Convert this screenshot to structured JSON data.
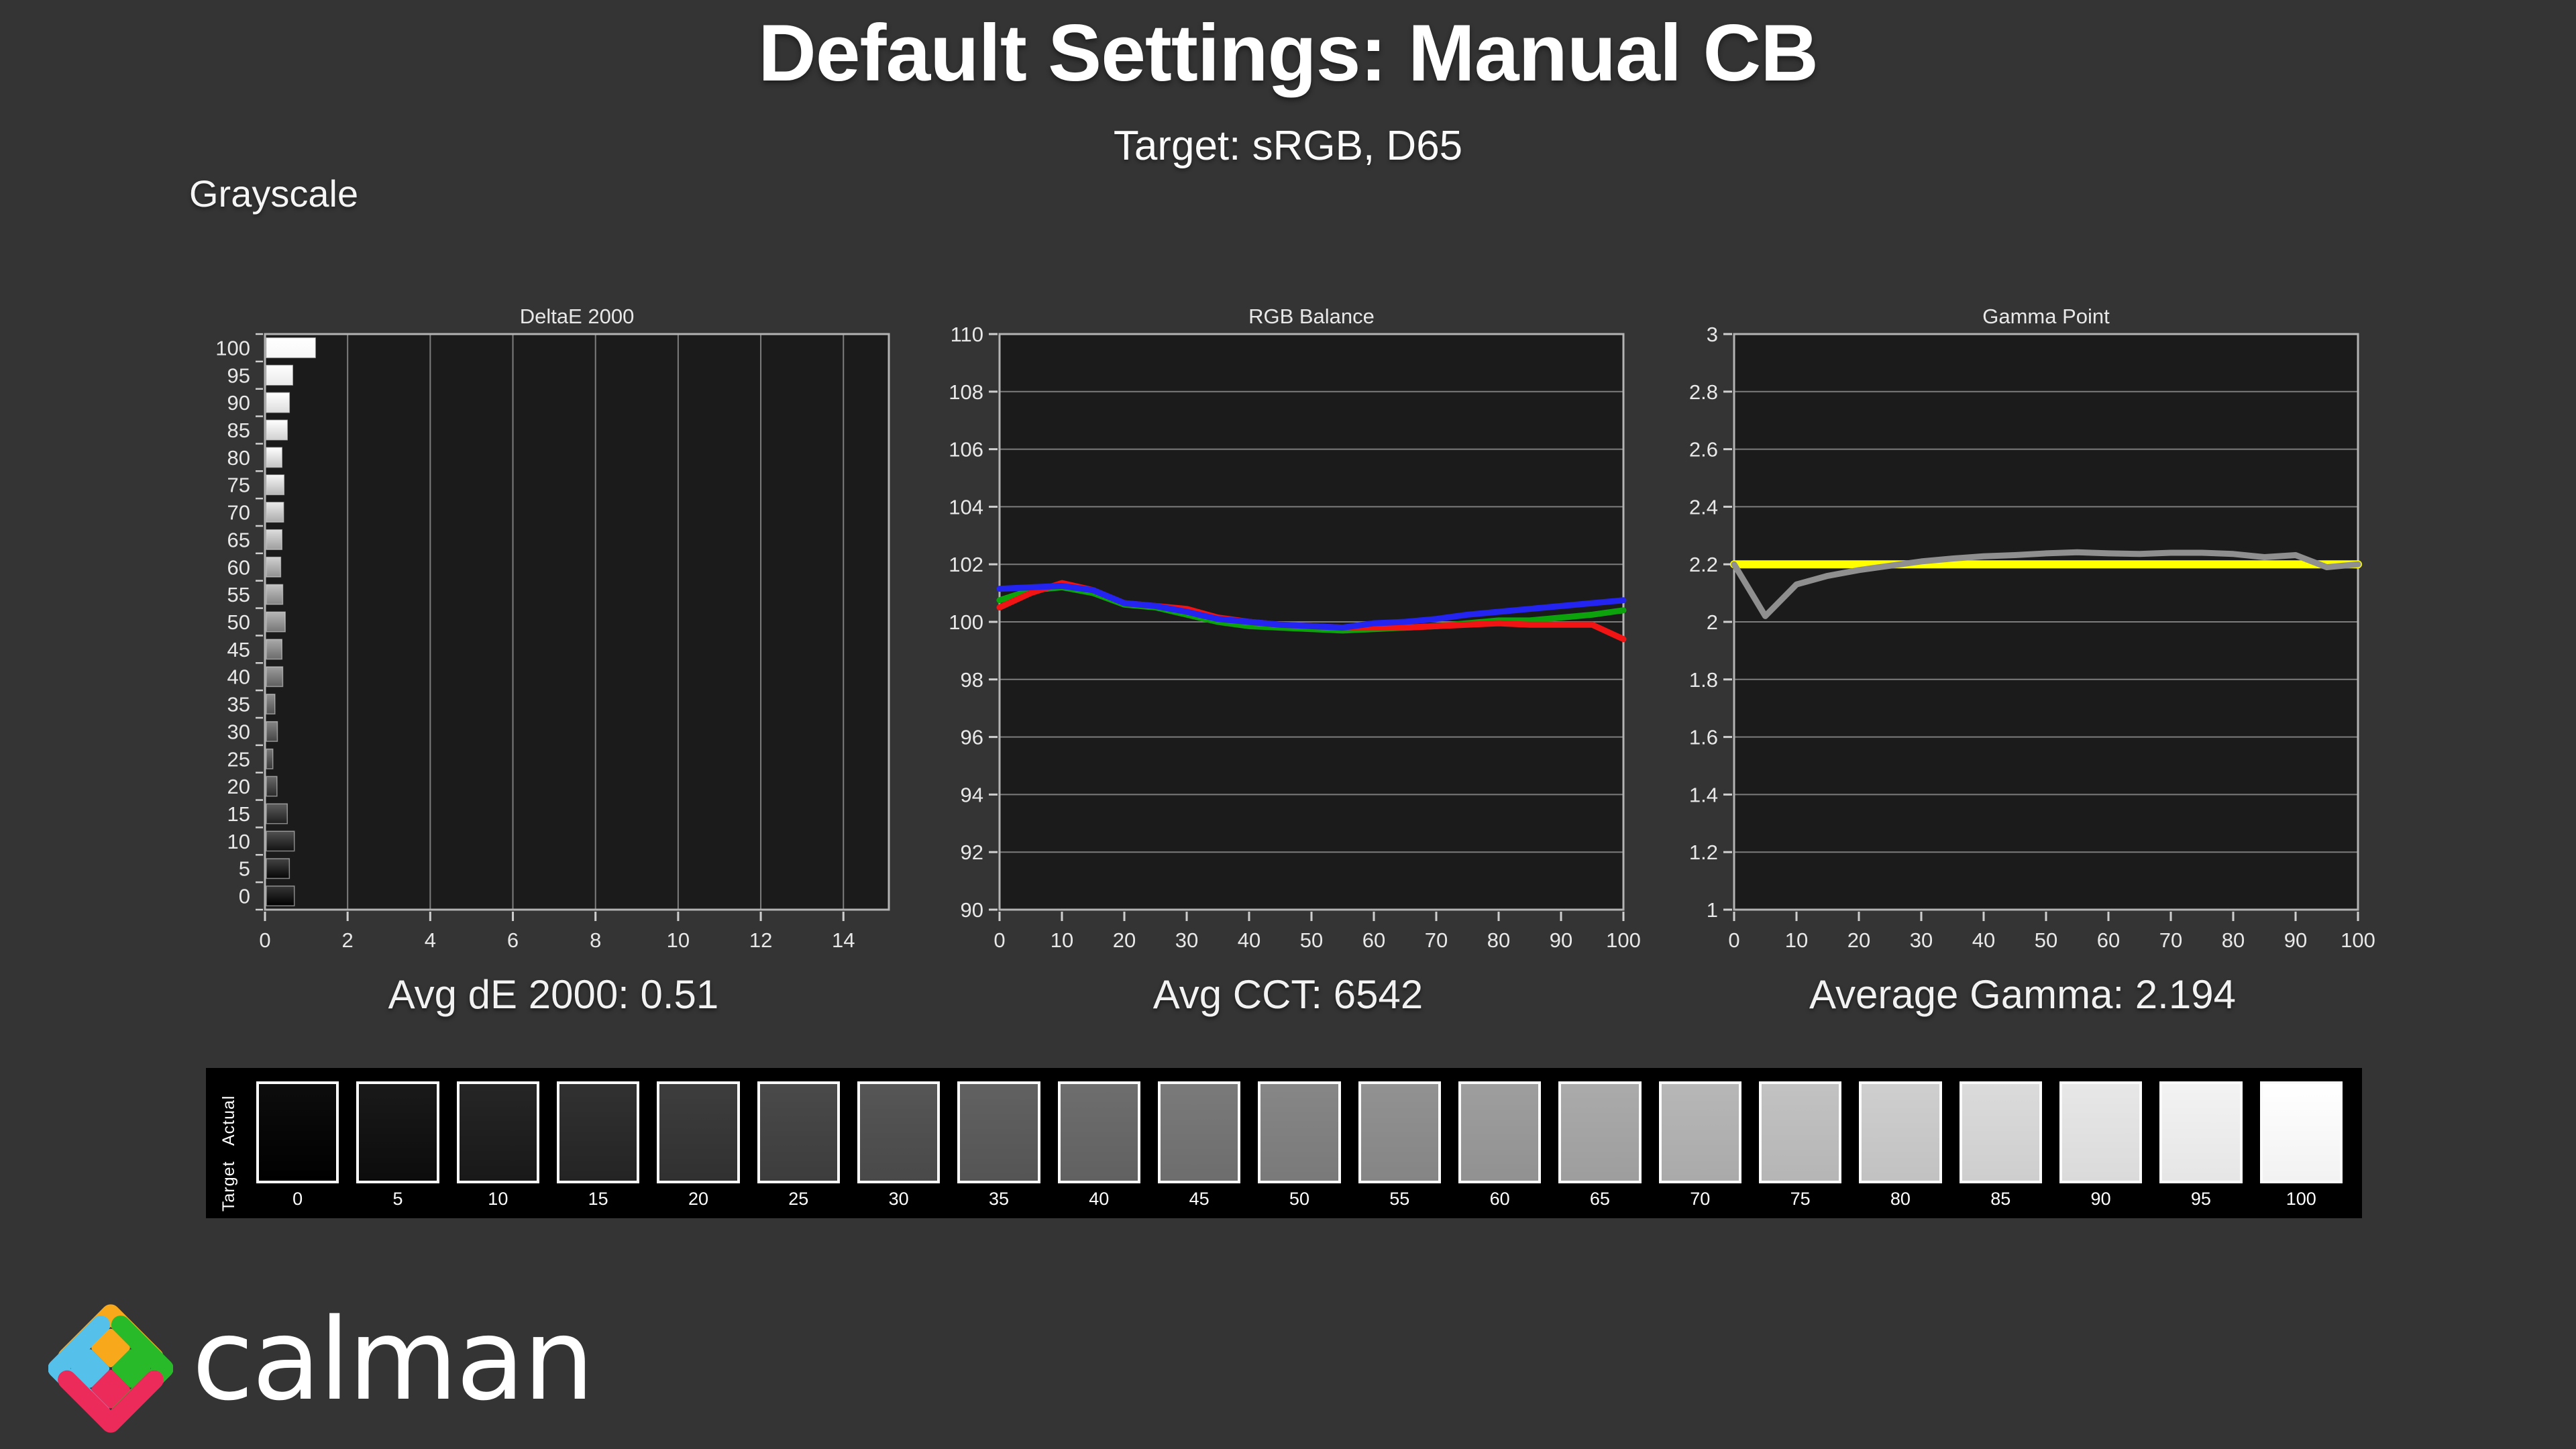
{
  "page": {
    "title": "Default Settings: Manual CB",
    "subtitle": "Target: sRGB, D65",
    "section_label": "Grayscale",
    "brand": "calman",
    "background": "#343434",
    "plot_background": "#1b1b1b",
    "gridline_color": "#7d7d7d",
    "plot_border_color": "#b3b3b3",
    "tick_label_color": "#e8e8e8"
  },
  "stats": {
    "deltae": "Avg dE 2000: 0.51",
    "cct": "Avg CCT: 6542",
    "gamma": "Average Gamma: 2.194"
  },
  "chart_data": [
    {
      "type": "bar",
      "orientation": "horizontal",
      "title": "DeltaE 2000",
      "categories": [
        100,
        95,
        90,
        85,
        80,
        75,
        70,
        65,
        60,
        55,
        50,
        45,
        40,
        35,
        30,
        25,
        20,
        15,
        10,
        5,
        0
      ],
      "values": [
        1.22,
        0.67,
        0.59,
        0.54,
        0.41,
        0.46,
        0.45,
        0.41,
        0.38,
        0.43,
        0.49,
        0.41,
        0.43,
        0.24,
        0.3,
        0.19,
        0.29,
        0.54,
        0.71,
        0.59,
        0.71
      ],
      "xlim": [
        0,
        15.1
      ],
      "xticks": [
        0,
        2,
        4,
        6,
        8,
        10,
        12,
        14
      ],
      "xtick_labels": [
        "0",
        "2",
        "4",
        "6",
        "8",
        "10",
        "12",
        "14"
      ],
      "grid": "vertical",
      "bar_fill": "grayscale-of-level"
    },
    {
      "type": "line",
      "title": "RGB Balance",
      "x": [
        0,
        5,
        10,
        15,
        20,
        25,
        30,
        35,
        40,
        45,
        50,
        55,
        60,
        65,
        70,
        75,
        80,
        85,
        90,
        95,
        100
      ],
      "series": [
        {
          "name": "Green",
          "color": "#0da30d",
          "width": 9,
          "values": [
            100.75,
            101.1,
            101.2,
            101.0,
            100.6,
            100.5,
            100.25,
            100.0,
            99.85,
            99.8,
            99.75,
            99.7,
            99.75,
            99.8,
            99.85,
            99.95,
            100.05,
            100.05,
            100.15,
            100.25,
            100.4
          ]
        },
        {
          "name": "Red",
          "color": "#f01414",
          "width": 9,
          "values": [
            100.5,
            101.0,
            101.35,
            101.1,
            100.65,
            100.55,
            100.45,
            100.15,
            100.0,
            99.9,
            99.85,
            99.8,
            99.8,
            99.8,
            99.85,
            99.9,
            99.95,
            99.9,
            99.9,
            99.9,
            99.4
          ]
        },
        {
          "name": "Blue",
          "color": "#2424f0",
          "width": 9,
          "values": [
            101.15,
            101.2,
            101.25,
            101.1,
            100.65,
            100.55,
            100.35,
            100.1,
            100.0,
            99.9,
            99.85,
            99.8,
            99.95,
            100.0,
            100.1,
            100.25,
            100.35,
            100.45,
            100.55,
            100.65,
            100.75
          ]
        }
      ],
      "ylim": [
        90,
        110
      ],
      "yticks": [
        90,
        92,
        94,
        96,
        98,
        100,
        102,
        104,
        106,
        108,
        110
      ],
      "ytick_labels": [
        "90",
        "92",
        "94",
        "96",
        "98",
        "100",
        "102",
        "104",
        "106",
        "108",
        "110"
      ],
      "xticks": [
        0,
        10,
        20,
        30,
        40,
        50,
        60,
        70,
        80,
        90,
        100
      ],
      "xtick_labels": [
        "0",
        "10",
        "20",
        "30",
        "40",
        "50",
        "60",
        "70",
        "80",
        "90",
        "100"
      ],
      "grid": "horizontal",
      "legend_position": "none"
    },
    {
      "type": "line",
      "title": "Gamma Point",
      "x": [
        0,
        5,
        10,
        15,
        20,
        25,
        30,
        35,
        40,
        45,
        50,
        55,
        60,
        65,
        70,
        75,
        80,
        85,
        90,
        95,
        100
      ],
      "series": [
        {
          "name": "Target Gamma",
          "color": "#ffff00",
          "width": 12,
          "values": [
            2.2,
            2.2,
            2.2,
            2.2,
            2.2,
            2.2,
            2.2,
            2.2,
            2.2,
            2.2,
            2.2,
            2.2,
            2.2,
            2.2,
            2.2,
            2.2,
            2.2,
            2.2,
            2.2,
            2.2,
            2.2
          ]
        },
        {
          "name": "Measured Gamma",
          "color": "#8f8f8f",
          "width": 9,
          "values": [
            2.2,
            2.02,
            2.13,
            2.16,
            2.18,
            2.195,
            2.21,
            2.22,
            2.228,
            2.232,
            2.238,
            2.242,
            2.238,
            2.236,
            2.24,
            2.24,
            2.236,
            2.225,
            2.232,
            2.19,
            2.2
          ]
        }
      ],
      "ylim": [
        1,
        3
      ],
      "yticks": [
        1,
        1.2,
        1.4,
        1.6,
        1.8,
        2,
        2.2,
        2.4,
        2.6,
        2.8,
        3
      ],
      "ytick_labels": [
        "1",
        "1.2",
        "1.4",
        "1.6",
        "1.8",
        "2",
        "2.2",
        "2.4",
        "2.6",
        "2.8",
        "3"
      ],
      "xticks": [
        0,
        10,
        20,
        30,
        40,
        50,
        60,
        70,
        80,
        90,
        100
      ],
      "xtick_labels": [
        "0",
        "10",
        "20",
        "30",
        "40",
        "50",
        "60",
        "70",
        "80",
        "90",
        "100"
      ],
      "grid": "horizontal",
      "legend_position": "none"
    }
  ],
  "grayscale_strip": {
    "row_labels": [
      "Actual",
      "Target"
    ],
    "levels": [
      0,
      5,
      10,
      15,
      20,
      25,
      30,
      35,
      40,
      45,
      50,
      55,
      60,
      65,
      70,
      75,
      80,
      85,
      90,
      95,
      100
    ],
    "labels": [
      "0",
      "5",
      "10",
      "15",
      "20",
      "25",
      "30",
      "35",
      "40",
      "45",
      "50",
      "55",
      "60",
      "65",
      "70",
      "75",
      "80",
      "85",
      "90",
      "95",
      "100"
    ],
    "swatch_hex": [
      "#000000",
      "#0d0d0d",
      "#1a1a1a",
      "#262626",
      "#333333",
      "#404040",
      "#4d4d4d",
      "#595959",
      "#666666",
      "#737373",
      "#808080",
      "#8c8c8c",
      "#999999",
      "#a6a6a6",
      "#b3b3b3",
      "#bfbfbf",
      "#cccccc",
      "#d9d9d9",
      "#e6e6e6",
      "#f2f2f2",
      "#ffffff"
    ]
  },
  "logo": {
    "yellow": "#f7a81b",
    "blue": "#55c1eb",
    "green": "#28ba28",
    "pink": "#ed2b5b"
  }
}
